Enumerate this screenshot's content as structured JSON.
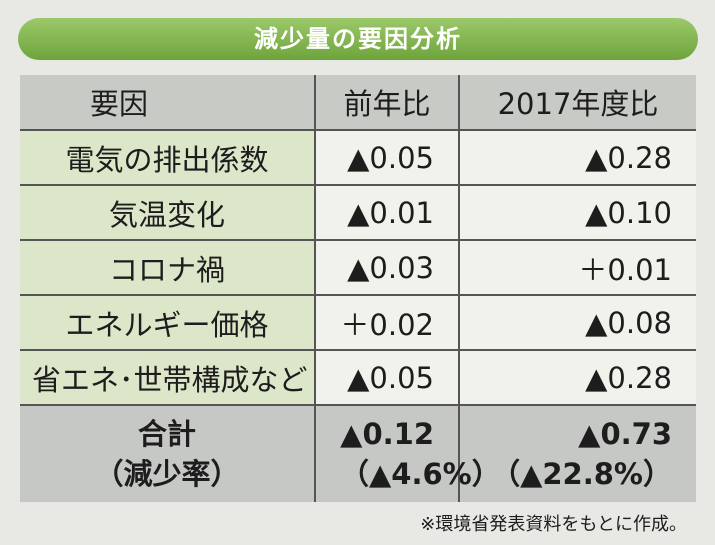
{
  "header": {
    "title": "減少量の要因分析"
  },
  "table": {
    "columns": [
      "要因",
      "前年比",
      "2017年度比"
    ],
    "rows": [
      [
        "電気の排出係数",
        "▲0.05",
        "▲0.28"
      ],
      [
        "気温変化",
        "▲0.01",
        "▲0.10"
      ],
      [
        "コロナ禍",
        "▲0.03",
        "＋0.01"
      ],
      [
        "エネルギー価格",
        "＋0.02",
        "▲0.08"
      ],
      [
        "省エネ･世帯構成など",
        "▲0.05",
        "▲0.28"
      ]
    ],
    "total": {
      "label": [
        "合計",
        "（減少率）"
      ],
      "values": [
        [
          "▲0.12",
          "（▲4.6%）"
        ],
        [
          "▲0.73",
          "（▲22.8%）"
        ]
      ]
    }
  },
  "footnote": "※環境省発表資料をもとに作成。"
}
